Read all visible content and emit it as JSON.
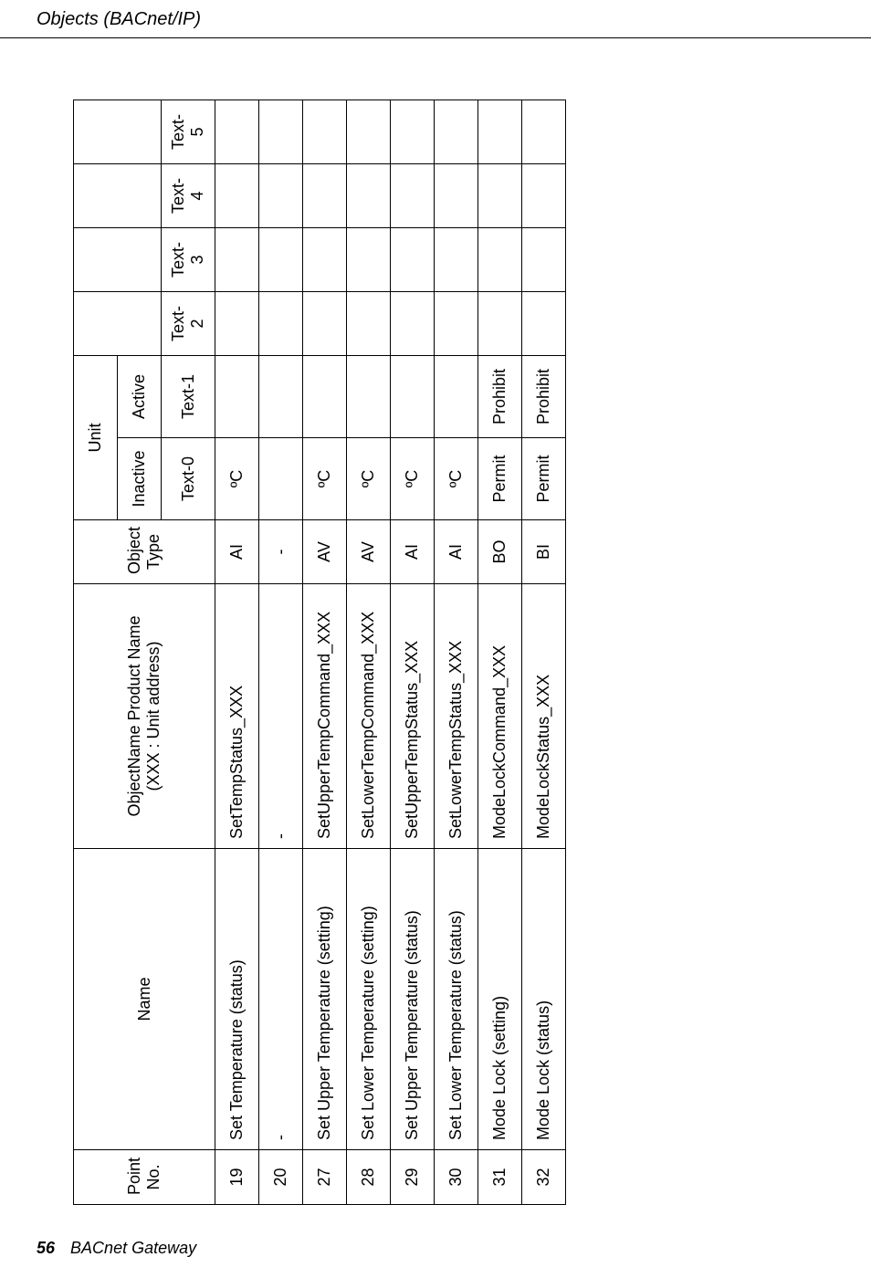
{
  "header": {
    "section_title": "Objects (BACnet/IP)"
  },
  "footer": {
    "page_number": "56",
    "book_title": "BACnet Gateway"
  },
  "table": {
    "head": {
      "point_no": "Point\nNo.",
      "name": "Name",
      "object_name": "ObjectName Product Name\n(XXX : Unit address)",
      "object_type": "Object\nType",
      "unit": "Unit",
      "inactive": "Inactive",
      "active": "Active",
      "text0": "Text-0",
      "text1": "Text-1",
      "text2": "Text-2",
      "text3": "Text-3",
      "text4": "Text-4",
      "text5": "Text-5"
    },
    "rows": [
      {
        "no": "19",
        "name": "Set Temperature (status)",
        "obj": "SetTempStatus_XXX",
        "type": "AI",
        "u0": "ºC",
        "u1": "",
        "t2": "",
        "t3": "",
        "t4": "",
        "t5": ""
      },
      {
        "no": "20",
        "name": "-",
        "obj": "-",
        "type": "-",
        "u0": "",
        "u1": "",
        "t2": "",
        "t3": "",
        "t4": "",
        "t5": ""
      },
      {
        "no": "27",
        "name": "Set Upper Temperature (setting)",
        "obj": "SetUpperTempCommand_XXX",
        "type": "AV",
        "u0": "ºC",
        "u1": "",
        "t2": "",
        "t3": "",
        "t4": "",
        "t5": ""
      },
      {
        "no": "28",
        "name": "Set Lower Temperature (setting)",
        "obj": "SetLowerTempCommand_XXX",
        "type": "AV",
        "u0": "ºC",
        "u1": "",
        "t2": "",
        "t3": "",
        "t4": "",
        "t5": ""
      },
      {
        "no": "29",
        "name": "Set Upper Temperature (status)",
        "obj": "SetUpperTempStatus_XXX",
        "type": "AI",
        "u0": "ºC",
        "u1": "",
        "t2": "",
        "t3": "",
        "t4": "",
        "t5": ""
      },
      {
        "no": "30",
        "name": "Set Lower Temperature (status)",
        "obj": "SetLowerTempStatus_XXX",
        "type": "AI",
        "u0": "ºC",
        "u1": "",
        "t2": "",
        "t3": "",
        "t4": "",
        "t5": ""
      },
      {
        "no": "31",
        "name": "Mode Lock (setting)",
        "obj": "ModeLockCommand_XXX",
        "type": "BO",
        "u0": "Permit",
        "u1": "Prohibit",
        "t2": "",
        "t3": "",
        "t4": "",
        "t5": ""
      },
      {
        "no": "32",
        "name": "Mode Lock (status)",
        "obj": "ModeLockStatus_XXX",
        "type": "BI",
        "u0": "Permit",
        "u1": "Prohibit",
        "t2": "",
        "t3": "",
        "t4": "",
        "t5": ""
      }
    ]
  }
}
